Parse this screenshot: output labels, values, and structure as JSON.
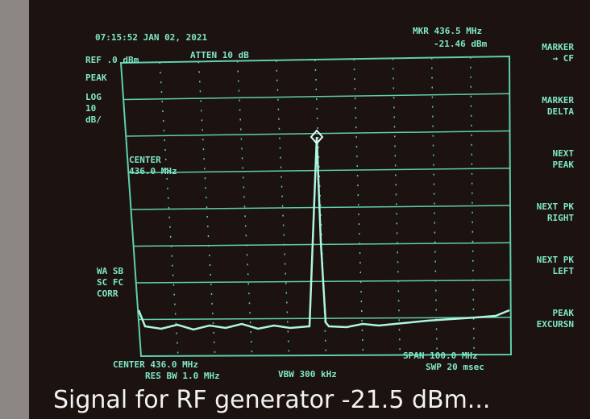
{
  "header": {
    "timestamp": "07:15:52 JAN 02, 2021",
    "ref_level": "REF .0 dBm",
    "attenuation": "ATTEN 10 dB",
    "detector": "PEAK",
    "scale": [
      "LOG",
      "10",
      "dB/"
    ]
  },
  "marker": {
    "frequency": "MKR 436.5 MHz",
    "level": "-21.46 dBm"
  },
  "softkeys": [
    [
      "MARKER",
      "→ CF"
    ],
    [
      "MARKER",
      "DELTA"
    ],
    [
      "NEXT",
      "PEAK"
    ],
    [
      "NEXT PK",
      "RIGHT"
    ],
    [
      "NEXT PK",
      "LEFT"
    ],
    [
      "PEAK",
      "EXCURSN"
    ]
  ],
  "center_annotation": [
    "CENTER",
    "436.0 MHz"
  ],
  "status": [
    "WA SB",
    "SC FC",
    "CORR"
  ],
  "footer": {
    "center": "CENTER 436.0 MHz",
    "res_bw": "RES BW 1.0 MHz",
    "vbw": "VBW 300 kHz",
    "span": "SPAN 100.0 MHz",
    "sweep": "SWP 20 msec"
  },
  "caption": "Signal for RF generator -21.5 dBm..."
}
